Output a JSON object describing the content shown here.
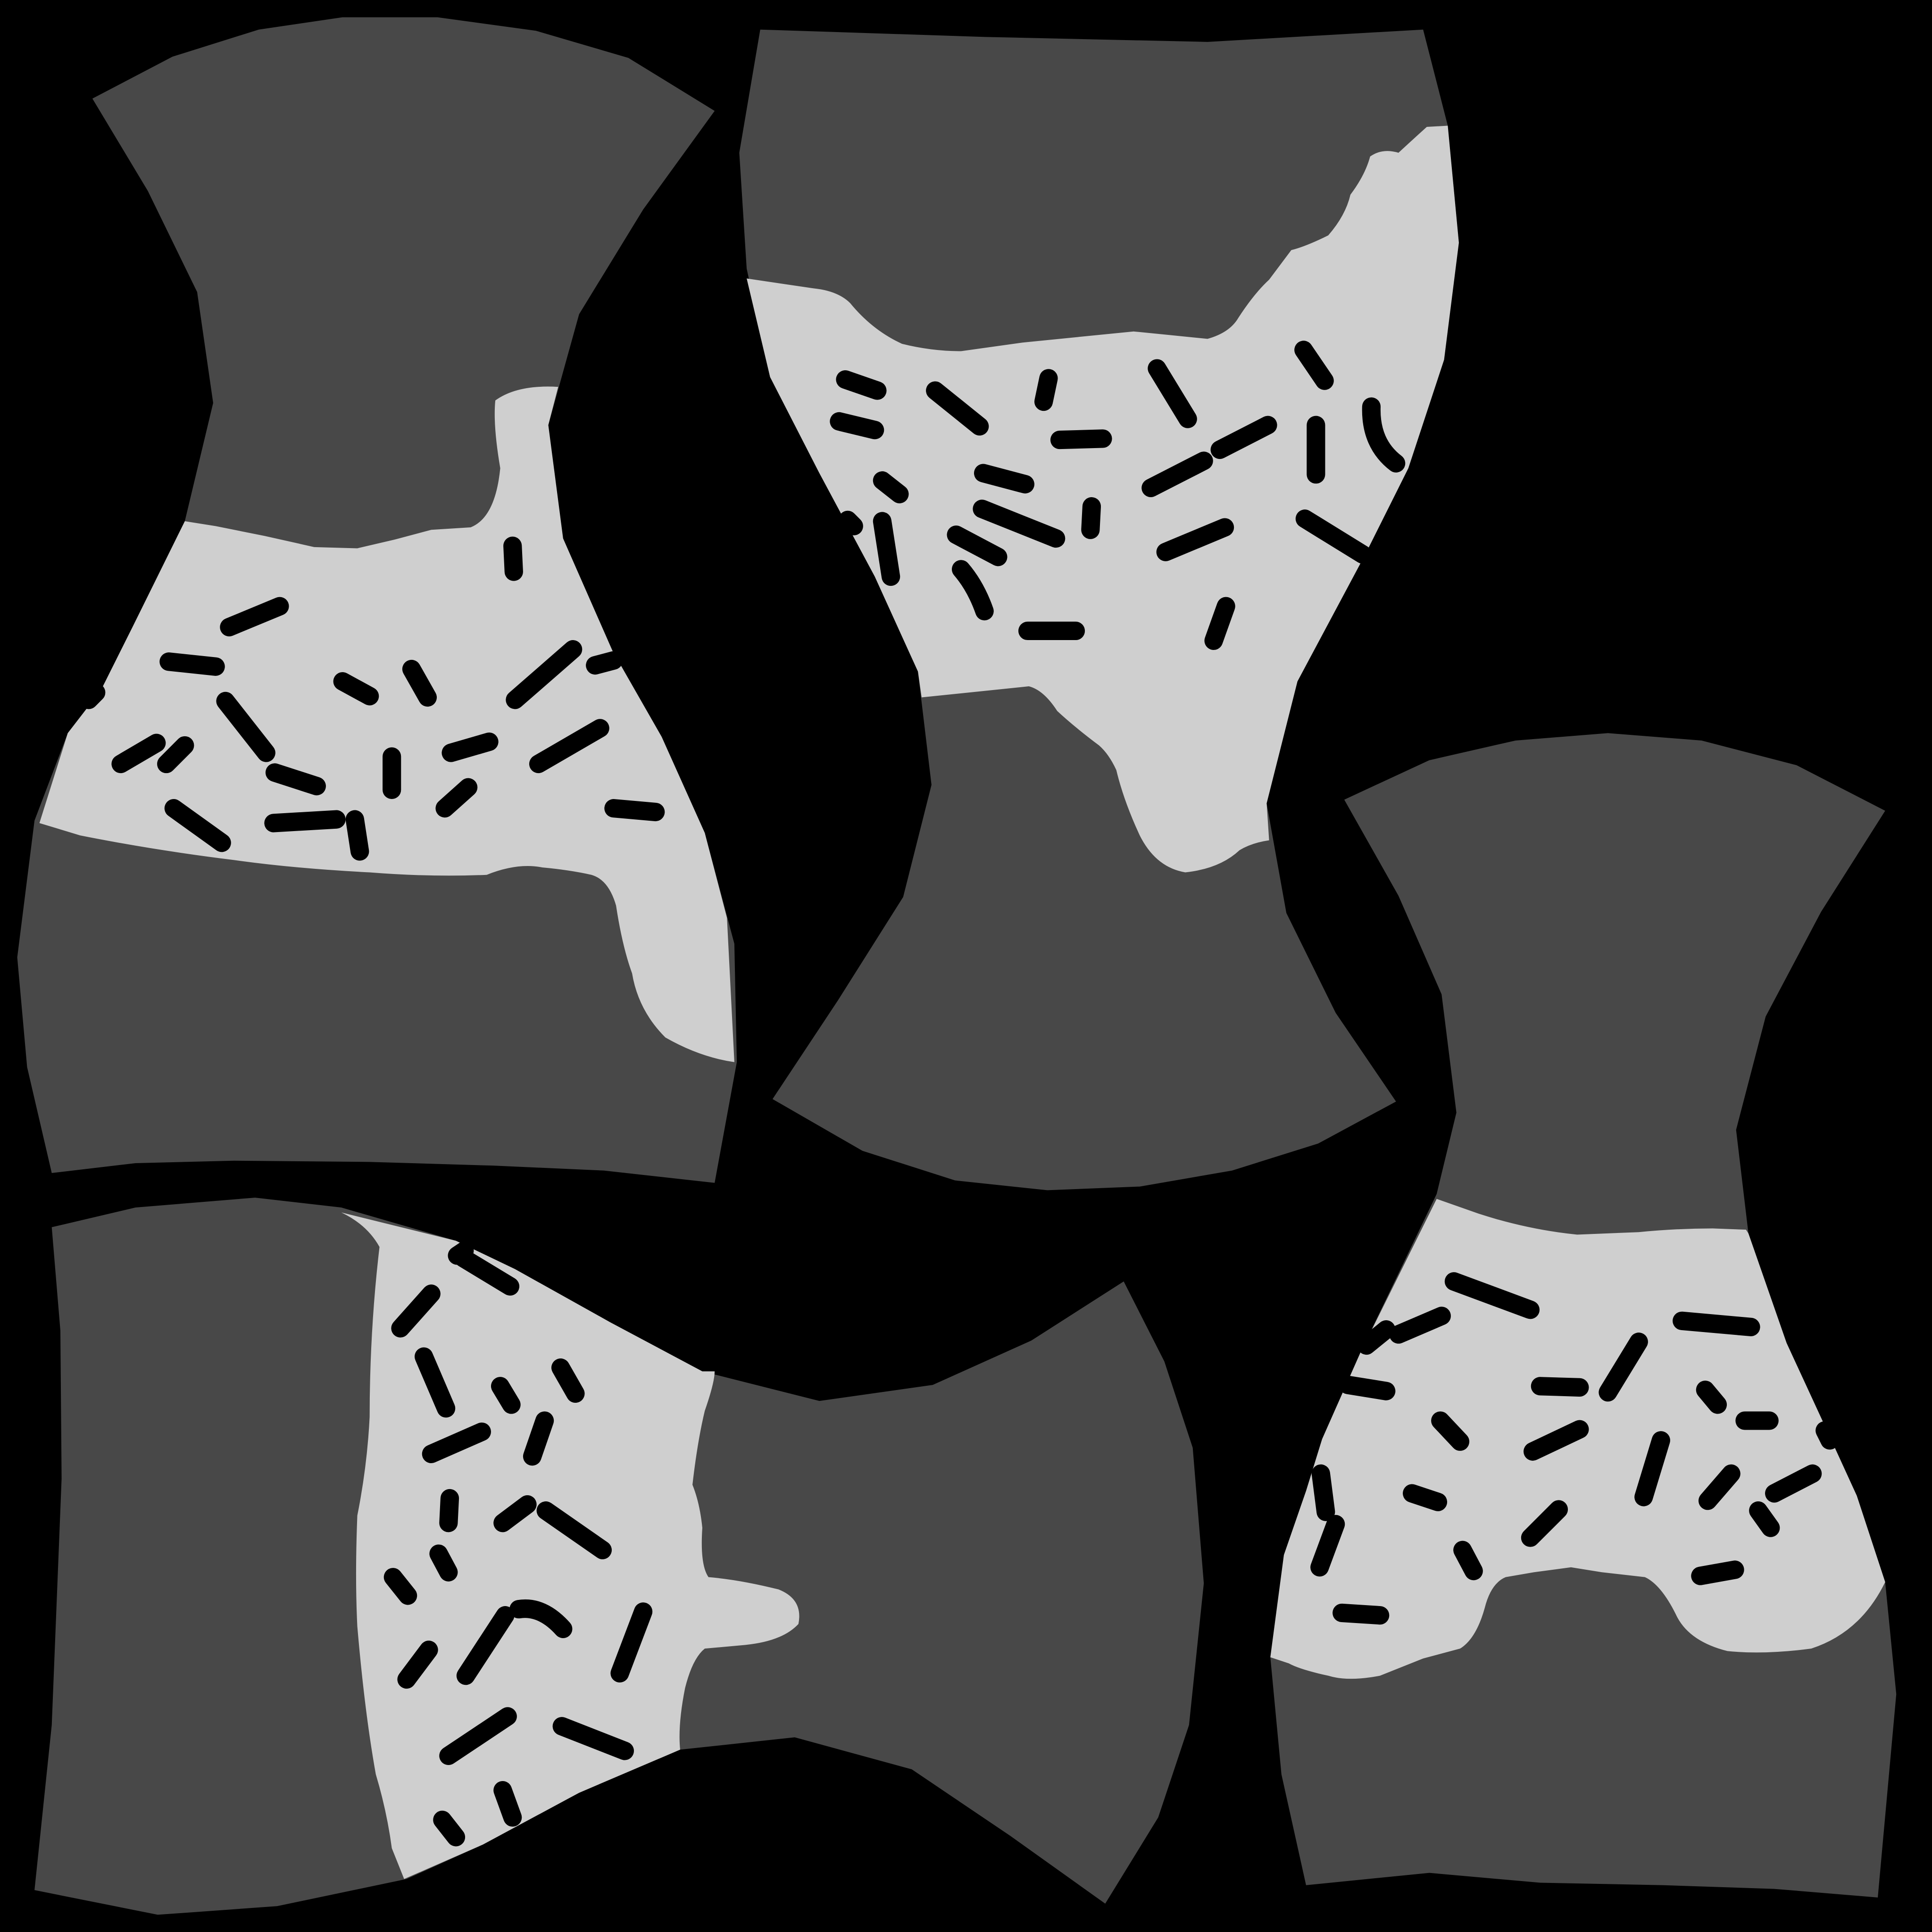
{
  "colors": {
    "background": "#000000",
    "shell": "#484848",
    "band": "#cfcfcf",
    "fleck": "#000000"
  },
  "pieces": [
    {
      "id": "piece-top-left"
    },
    {
      "id": "piece-top-middle"
    },
    {
      "id": "piece-right"
    },
    {
      "id": "piece-bottom-left"
    }
  ]
}
